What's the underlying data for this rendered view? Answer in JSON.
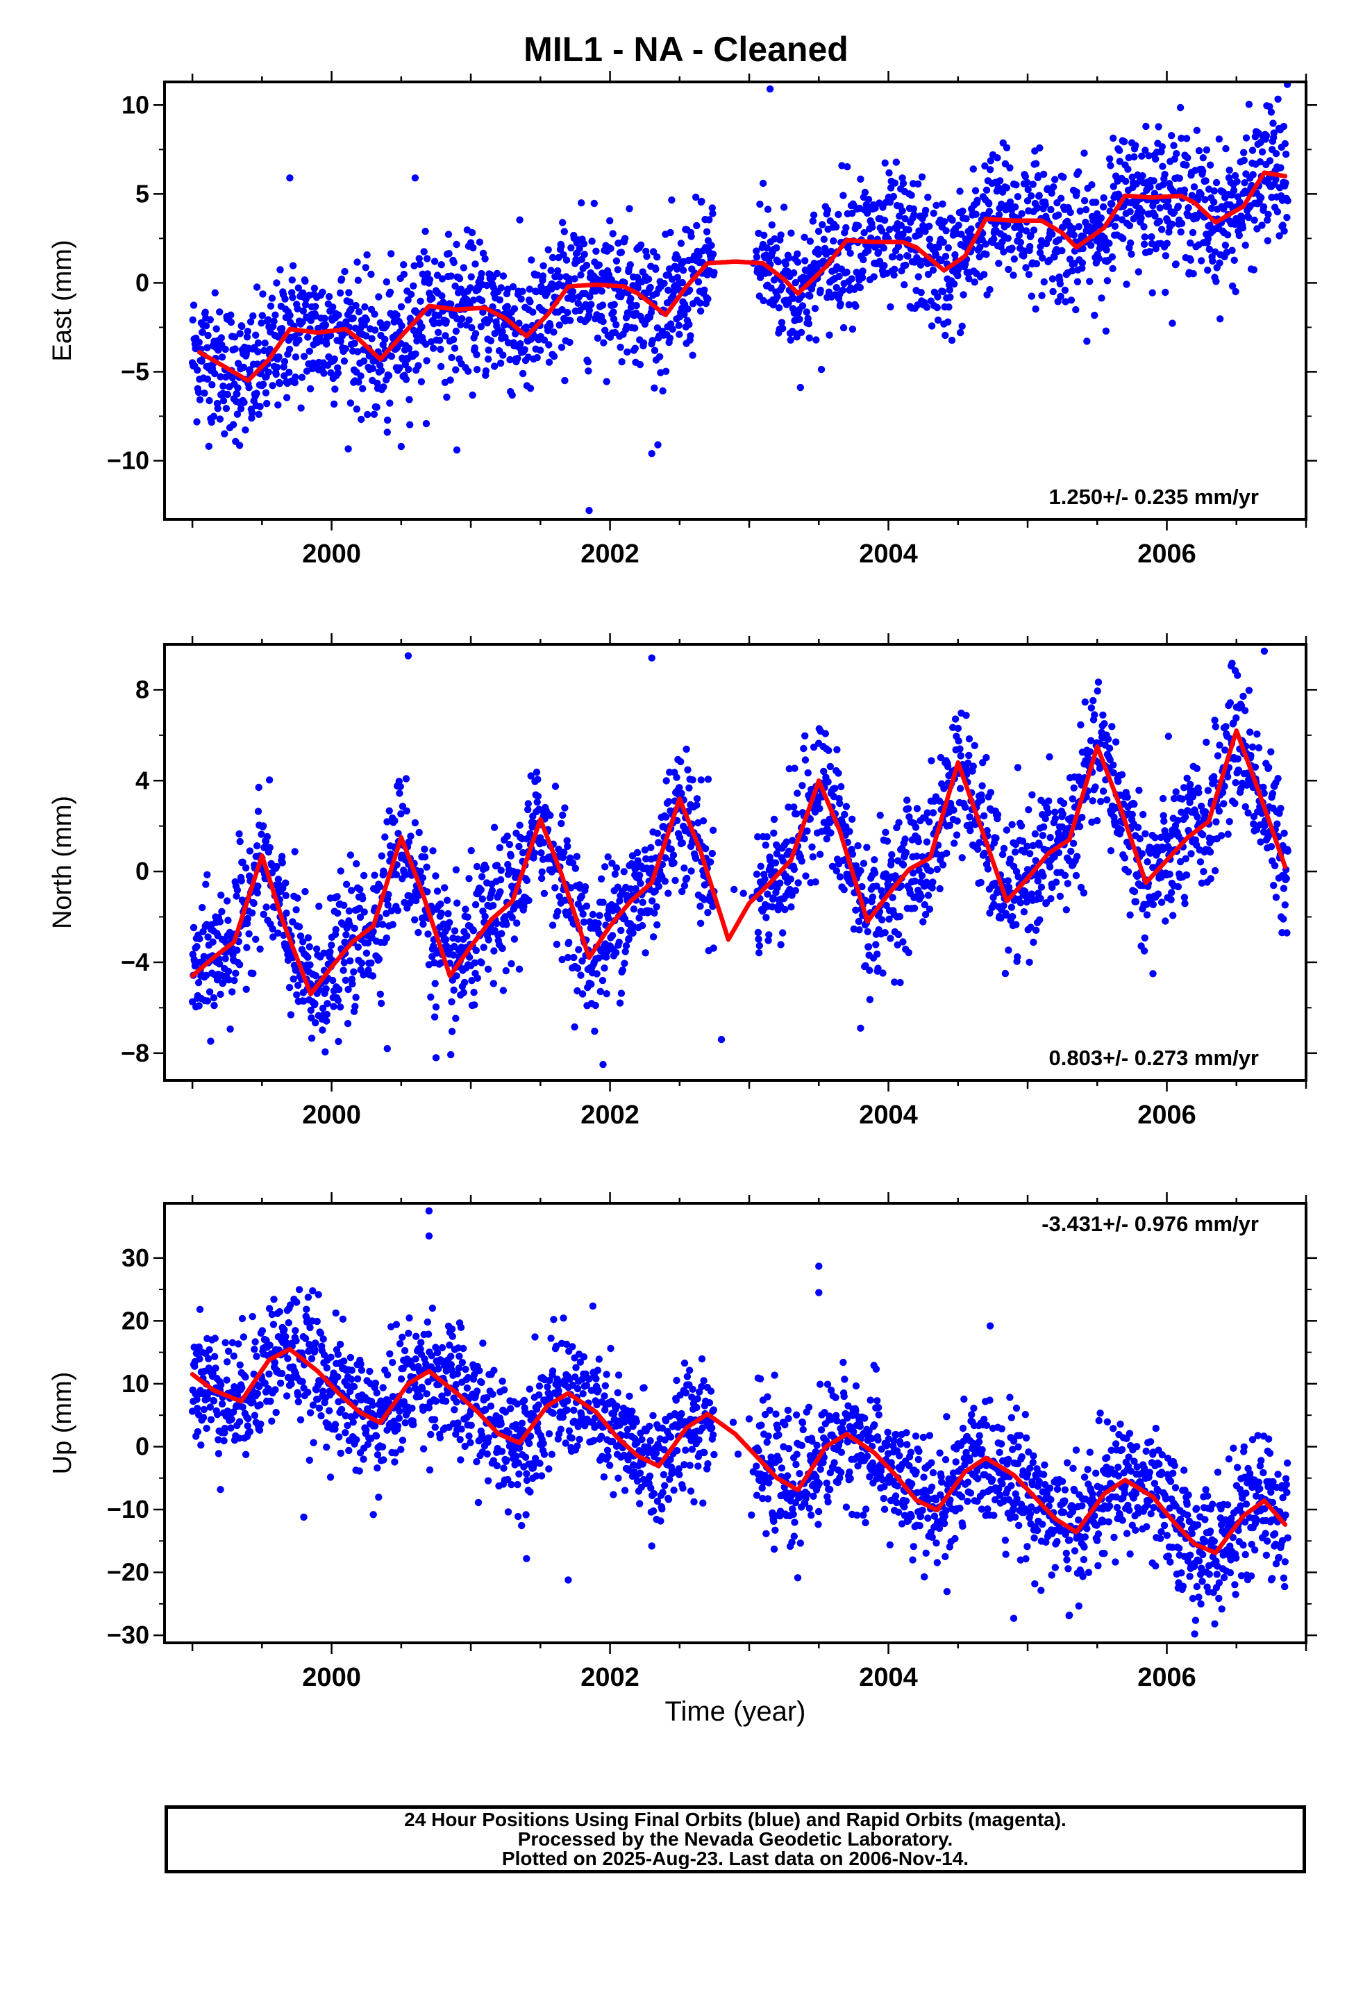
{
  "title": "MIL1  - NA - Cleaned",
  "caption": {
    "line1": "24 Hour Positions Using Final Orbits (blue) and Rapid Orbits (magenta).",
    "line2": "Processed by the Nevada Geodetic Laboratory.",
    "line3": "Plotted on 2025-Aug-23. Last data on 2006-Nov-14."
  },
  "colors": {
    "points": "#0000ff",
    "model": "#ff0000",
    "frame": "#000000"
  },
  "chart_data": [
    {
      "type": "scatter",
      "panel": "east",
      "ylabel": "East (mm)",
      "xlabel": "",
      "xlim": [
        1998.8,
        2007.0
      ],
      "ylim": [
        -13.3,
        11.3
      ],
      "xticks": [
        2000,
        2002,
        2004,
        2006
      ],
      "yticks": [
        10,
        5,
        0,
        -5,
        -10
      ],
      "ytick_labels": [
        "10",
        "5",
        "0",
        "−5",
        "−10"
      ],
      "rate_label": "1.250+/- 0.235 mm/yr",
      "grid": false,
      "series": [
        {
          "role": "model",
          "x": [
            1999.05,
            1999.25,
            1999.4,
            1999.55,
            1999.7,
            1999.9,
            2000.1,
            2000.2,
            2000.35,
            2000.5,
            2000.7,
            2000.9,
            2001.1,
            2001.25,
            2001.4,
            2001.55,
            2001.7,
            2001.9,
            2002.1,
            2002.2,
            2002.4,
            2002.55,
            2002.7,
            2002.9,
            2003.1,
            2003.25,
            2003.35,
            2003.55,
            2003.7,
            2003.9,
            2004.1,
            2004.2,
            2004.4,
            2004.55,
            2004.7,
            2004.9,
            2005.1,
            2005.25,
            2005.35,
            2005.55,
            2005.7,
            2005.9,
            2006.1,
            2006.2,
            2006.35,
            2006.55,
            2006.7,
            2006.85
          ],
          "y": [
            -3.9,
            -4.8,
            -5.5,
            -4.3,
            -2.6,
            -2.8,
            -2.6,
            -3.2,
            -4.3,
            -3.0,
            -1.3,
            -1.5,
            -1.4,
            -2.0,
            -3.0,
            -1.8,
            -0.2,
            -0.1,
            -0.2,
            -0.6,
            -1.8,
            -0.2,
            1.1,
            1.2,
            1.1,
            0.2,
            -0.6,
            0.9,
            2.4,
            2.3,
            2.3,
            2.0,
            0.7,
            1.5,
            3.6,
            3.5,
            3.5,
            2.8,
            2.0,
            3.1,
            4.9,
            4.8,
            4.9,
            4.5,
            3.4,
            4.3,
            6.2,
            6.0
          ]
        },
        {
          "role": "observations",
          "outliers": [
            [
              2003.15,
              10.9
            ],
            [
              2001.85,
              -12.8
            ],
            [
              2002.3,
              -9.6
            ],
            [
              2000.5,
              -9.2
            ],
            [
              2000.9,
              -9.4
            ],
            [
              1999.7,
              5.9
            ],
            [
              2000.6,
              5.9
            ],
            [
              2003.1,
              5.6
            ],
            [
              2004.85,
              7.6
            ],
            [
              2006.75,
              9.6
            ],
            [
              2005.85,
              8.8
            ],
            [
              2000.4,
              -8.4
            ],
            [
              2004.1,
              5.9
            ]
          ]
        }
      ]
    },
    {
      "type": "scatter",
      "panel": "north",
      "ylabel": "North (mm)",
      "xlabel": "",
      "xlim": [
        1998.8,
        2007.0
      ],
      "ylim": [
        -9.2,
        10.0
      ],
      "xticks": [
        2000,
        2002,
        2004,
        2006
      ],
      "yticks": [
        8,
        4,
        0,
        -4,
        -8
      ],
      "ytick_labels": [
        "8",
        "4",
        "0",
        "−4",
        "−8"
      ],
      "rate_label": "0.803+/- 0.273 mm/yr",
      "grid": false,
      "series": [
        {
          "role": "model",
          "x": [
            1999.0,
            1999.15,
            1999.3,
            1999.5,
            1999.65,
            1999.85,
            2000.0,
            2000.15,
            2000.3,
            2000.5,
            2000.65,
            2000.85,
            2001.0,
            2001.15,
            2001.3,
            2001.5,
            2001.65,
            2001.85,
            2002.0,
            2002.15,
            2002.3,
            2002.5,
            2002.65,
            2002.85,
            2003.0,
            2003.15,
            2003.3,
            2003.5,
            2003.65,
            2003.85,
            2004.0,
            2004.15,
            2004.3,
            2004.5,
            2004.65,
            2004.85,
            2005.0,
            2005.15,
            2005.3,
            2005.5,
            2005.65,
            2005.85,
            2006.0,
            2006.15,
            2006.3,
            2006.5,
            2006.65,
            2006.85
          ],
          "y": [
            -4.6,
            -3.8,
            -3.1,
            0.7,
            -2.2,
            -5.4,
            -4.2,
            -3.1,
            -2.4,
            1.5,
            -0.9,
            -4.6,
            -3.3,
            -2.1,
            -1.3,
            2.3,
            -0.1,
            -3.8,
            -2.4,
            -1.3,
            -0.5,
            3.2,
            0.9,
            -3.0,
            -1.4,
            -0.5,
            0.5,
            4.0,
            1.8,
            -2.2,
            -1.0,
            0.1,
            0.6,
            4.8,
            2.2,
            -1.3,
            -0.3,
            0.8,
            1.4,
            5.5,
            3.1,
            -0.5,
            0.5,
            1.5,
            2.2,
            6.2,
            3.7,
            0.2
          ]
        },
        {
          "role": "observations",
          "outliers": [
            [
              2000.55,
              9.5
            ],
            [
              2002.3,
              9.4
            ],
            [
              2006.7,
              9.7
            ],
            [
              2000.4,
              -7.8
            ],
            [
              2001.95,
              -8.5
            ],
            [
              2003.8,
              -6.9
            ],
            [
              2005.9,
              -4.5
            ],
            [
              2002.8,
              -7.4
            ],
            [
              2000.75,
              -8.2
            ]
          ]
        }
      ]
    },
    {
      "type": "scatter",
      "panel": "up",
      "ylabel": "Up (mm)",
      "xlabel": "Time (year)",
      "xlim": [
        1998.8,
        2007.0
      ],
      "ylim": [
        -31.2,
        38.7
      ],
      "xticks": [
        2000,
        2002,
        2004,
        2006
      ],
      "yticks": [
        30,
        20,
        10,
        0,
        -10,
        -20,
        -30
      ],
      "ytick_labels": [
        "30",
        "20",
        "10",
        "0",
        "−10",
        "−20",
        "−30"
      ],
      "rate_label": "-3.431+/- 0.976 mm/yr",
      "grid": false,
      "series": [
        {
          "role": "model",
          "x": [
            1999.0,
            1999.15,
            1999.35,
            1999.55,
            1999.7,
            1999.9,
            2000.05,
            2000.2,
            2000.35,
            2000.55,
            2000.7,
            2000.9,
            2001.05,
            2001.2,
            2001.35,
            2001.55,
            2001.7,
            2001.9,
            2002.05,
            2002.2,
            2002.35,
            2002.55,
            2002.7,
            2002.9,
            2003.05,
            2003.2,
            2003.35,
            2003.55,
            2003.7,
            2003.9,
            2004.05,
            2004.2,
            2004.35,
            2004.55,
            2004.7,
            2004.9,
            2005.05,
            2005.2,
            2005.35,
            2005.55,
            2005.7,
            2005.9,
            2006.05,
            2006.2,
            2006.35,
            2006.55,
            2006.7,
            2006.85
          ],
          "y": [
            11.5,
            9.0,
            7.2,
            13.8,
            15.5,
            12.0,
            8.5,
            5.5,
            3.8,
            10.0,
            12.0,
            8.5,
            5.5,
            2.0,
            0.6,
            6.5,
            8.5,
            5.5,
            1.5,
            -1.5,
            -3.1,
            3.0,
            5.2,
            2.0,
            -1.5,
            -5.0,
            -6.9,
            0.0,
            2.0,
            -1.0,
            -4.5,
            -8.5,
            -10.1,
            -4.0,
            -1.8,
            -4.5,
            -8.0,
            -11.5,
            -13.6,
            -7.5,
            -5.3,
            -8.0,
            -12.0,
            -15.5,
            -16.9,
            -11.0,
            -8.6,
            -12.4
          ]
        },
        {
          "role": "observations",
          "outliers": [
            [
              2000.7,
              37.5
            ],
            [
              2000.7,
              33.5
            ],
            [
              2003.5,
              28.7
            ],
            [
              2003.5,
              24.5
            ],
            [
              2001.4,
              -17.8
            ],
            [
              2001.7,
              -21.2
            ],
            [
              2004.9,
              -27.3
            ],
            [
              2006.2,
              -29.8
            ],
            [
              2005.3,
              -26.8
            ],
            [
              2002.3,
              -15.8
            ],
            [
              2000.3,
              -10.8
            ],
            [
              1999.8,
              -11.2
            ]
          ]
        }
      ]
    }
  ]
}
